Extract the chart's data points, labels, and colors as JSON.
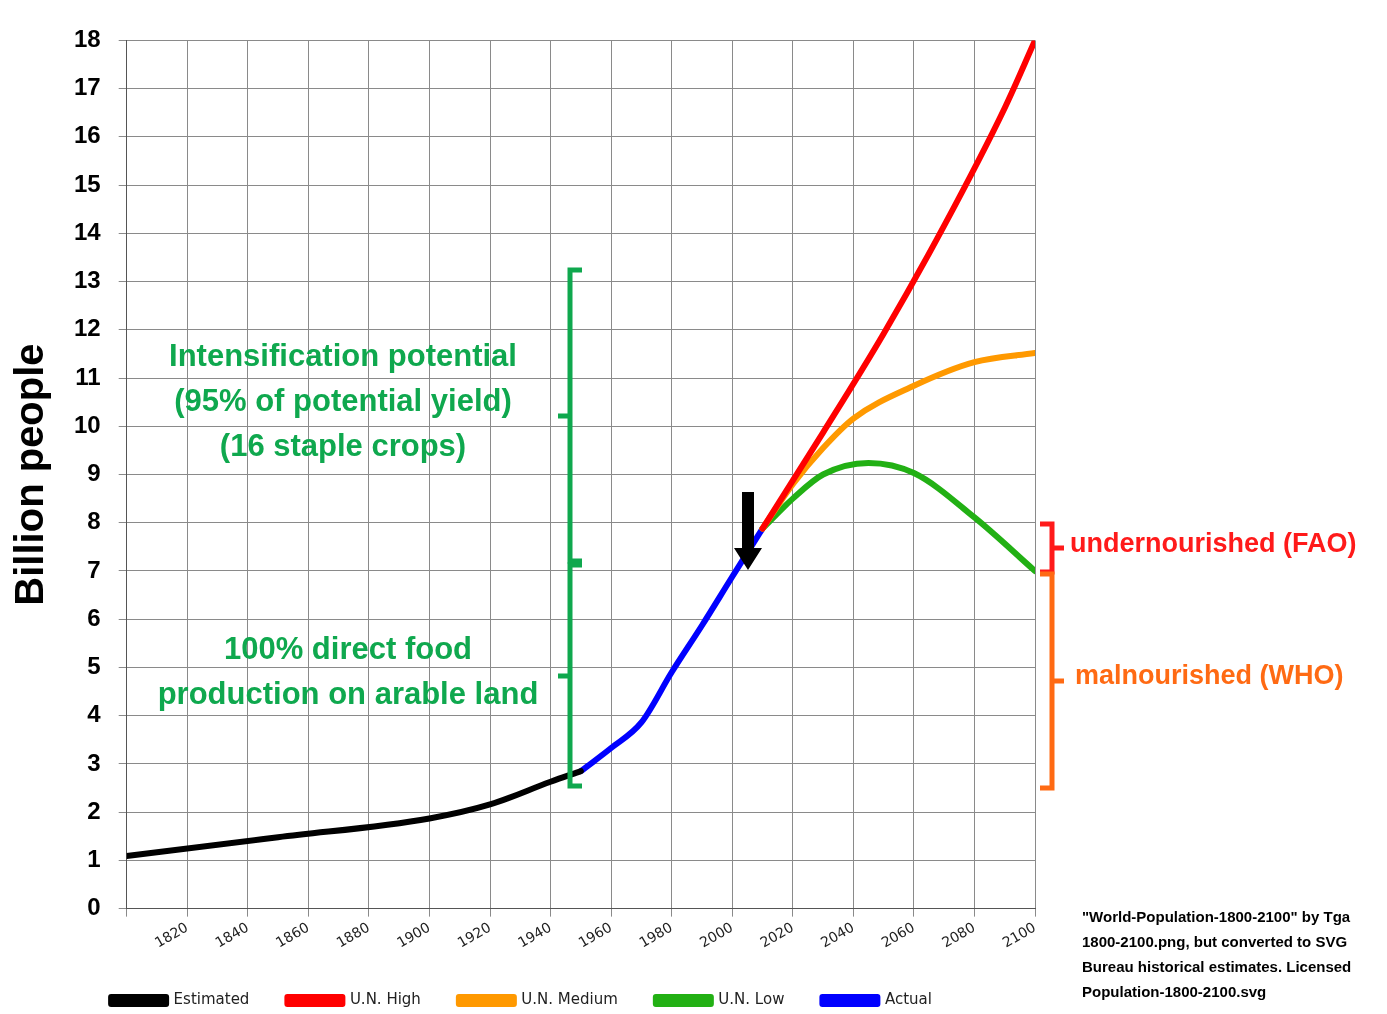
{
  "chart_data": {
    "type": "line",
    "ylabel": "Billion people",
    "xlim": [
      1800,
      2100
    ],
    "xticks": [
      {
        "value": 1800,
        "label": null
      },
      1820,
      1840,
      1860,
      1880,
      1900,
      1920,
      1940,
      1960,
      1980,
      2000,
      2020,
      2040,
      2060,
      2080,
      2100
    ],
    "ylim": [
      0,
      18
    ],
    "yticks": [
      0,
      1,
      2,
      3,
      4,
      5,
      6,
      7,
      8,
      9,
      10,
      11,
      12,
      13,
      14,
      15,
      16,
      17,
      18
    ],
    "grid": true,
    "legend": "bottom",
    "marker": "none",
    "series": [
      {
        "name": "Estimated",
        "color": "#000000",
        "x": [
          1800,
          1850,
          1900,
          1920,
          1940,
          1950
        ],
        "values": [
          1.09,
          1.48,
          1.87,
          2.16,
          2.63,
          2.85
        ]
      },
      {
        "name": "U.N. High",
        "color": "#ff0000",
        "x": [
          2010,
          2030,
          2050,
          2070,
          2090,
          2100
        ],
        "values": [
          7.88,
          9.87,
          11.92,
          14.16,
          16.6,
          18.0
        ]
      },
      {
        "name": "U.N. Medium",
        "color": "#ff9900",
        "x": [
          2010,
          2020,
          2030,
          2040,
          2060,
          2080,
          2100
        ],
        "values": [
          7.88,
          8.8,
          9.55,
          10.16,
          10.84,
          11.33,
          11.52
        ]
      },
      {
        "name": "U.N. Low",
        "color": "#22b014",
        "x": [
          2010,
          2020,
          2030,
          2045,
          2060,
          2080,
          2100
        ],
        "values": [
          7.88,
          8.5,
          9.0,
          9.24,
          9.03,
          8.11,
          7.0
        ]
      },
      {
        "name": "Actual",
        "color": "#0000ff",
        "x": [
          1950,
          1960,
          1970,
          1980,
          1990,
          2000,
          2010
        ],
        "values": [
          2.85,
          3.33,
          3.86,
          4.9,
          5.87,
          6.88,
          7.88
        ]
      }
    ],
    "annotations": [
      "Intensification potential\n(95% of potential yield)\n(16 staple crops)",
      "100% direct food\nproduction on arable land",
      "undernourished (FAO)",
      "malnourished (WHO)",
      "\"World-Population-1800-2100\" by Tga\n1800-2100.png, but converted to SVG\nBureau historical estimates. Licensed\nPopulation-1800-2100.svg"
    ]
  }
}
